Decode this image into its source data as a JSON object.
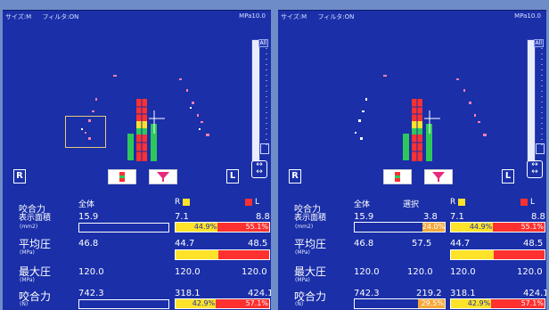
{
  "left_panel": {
    "size_label": "サイズ:M",
    "filter_label": "フィルタ:ON",
    "mpa_label": "MPa10.0",
    "all_label": "All",
    "r_label": "R",
    "l_label": "L",
    "stats": {
      "col_all": "全体",
      "col_r": "R",
      "col_l": "L",
      "area_label1": "咬合力",
      "area_label2": "表示面積",
      "area_unit": "(mm2)",
      "area_all": "15.9",
      "area_r": "7.1",
      "area_l": "8.8",
      "area_pct_r": "44.9%",
      "area_pct_l": "55.1%",
      "avg_label": "平均圧",
      "avg_unit": "(MPa)",
      "avg_all": "46.8",
      "avg_r": "44.7",
      "avg_l": "48.5",
      "max_label": "最大圧",
      "max_unit": "(MPa)",
      "max_all": "120.0",
      "max_r": "120.0",
      "max_l": "120.0",
      "force_label": "咬合力",
      "force_unit": "(N)",
      "force_all": "742.3",
      "force_r": "318.1",
      "force_l": "424.1",
      "force_pct_r": "42.9%",
      "force_pct_l": "57.1%"
    }
  },
  "right_panel": {
    "size_label": "サイズ:M",
    "filter_label": "フィルタ:ON",
    "mpa_label": "MPa10.0",
    "all_label": "All",
    "r_label": "R",
    "l_label": "L",
    "stats": {
      "col_all": "全体",
      "col_sel": "選択",
      "col_r": "R",
      "col_l": "L",
      "area_label1": "咬合力",
      "area_label2": "表示面積",
      "area_unit": "(mm2)",
      "area_all": "15.9",
      "area_sel": "3.8",
      "area_sel_pct": "24.0%",
      "area_r": "7.1",
      "area_l": "8.8",
      "area_pct_r": "44.9%",
      "area_pct_l": "55.1%",
      "avg_label": "平均圧",
      "avg_unit": "(MPa)",
      "avg_all": "46.8",
      "avg_sel": "57.5",
      "avg_r": "44.7",
      "avg_l": "48.5",
      "max_label": "最大圧",
      "max_unit": "(MPa)",
      "max_all": "120.0",
      "max_sel": "120.0",
      "max_r": "120.0",
      "max_l": "120.0",
      "force_label": "咬合力",
      "force_unit": "(N)",
      "force_all": "742.3",
      "force_sel": "219.2",
      "force_sel_pct": "29.5%",
      "force_r": "318.1",
      "force_l": "424.1",
      "force_pct_r": "42.9%",
      "force_pct_l": "57.1%"
    }
  },
  "colors": {
    "panel_bg": "#1a2fa8",
    "yellow": "#ffe22a",
    "red": "#ff3030",
    "orange": "#f4a83c",
    "green": "#2ec85a"
  }
}
